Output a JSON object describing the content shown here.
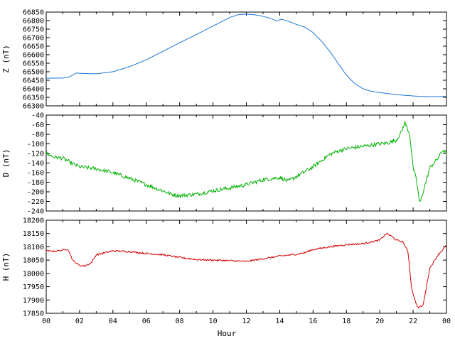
{
  "chart_data": [
    {
      "type": "line",
      "ylabel": "Z (nT)",
      "ylim": [
        66300,
        66850
      ],
      "yticks": [
        66300,
        66350,
        66400,
        66450,
        66500,
        66550,
        66600,
        66650,
        66700,
        66750,
        66800,
        66850
      ],
      "xlim": [
        0,
        24
      ],
      "color": "#1f77d4",
      "series": [
        {
          "x": [
            0,
            1.0,
            1.4,
            1.8,
            2.2,
            3.0,
            4.0,
            5.0,
            6.0,
            7.0,
            8.0,
            9.0,
            10.0,
            11.0,
            11.5,
            12.0,
            12.5,
            13.0,
            13.5,
            13.8,
            14.1,
            14.4,
            15.0,
            15.5,
            16.0,
            16.5,
            17.0,
            17.5,
            18.0,
            18.5,
            19.0,
            19.5,
            20.0,
            20.5,
            21.0,
            21.5,
            22.0,
            22.5,
            23.0,
            23.5,
            24.0
          ],
          "values": [
            66462,
            66463,
            66470,
            66492,
            66490,
            66488,
            66500,
            66530,
            66570,
            66620,
            66670,
            66718,
            66768,
            66818,
            66835,
            66838,
            66834,
            66825,
            66812,
            66797,
            66808,
            66800,
            66778,
            66762,
            66730,
            66680,
            66620,
            66550,
            66480,
            66430,
            66400,
            66385,
            66378,
            66372,
            66366,
            66362,
            66358,
            66355,
            66354,
            66354,
            66356
          ]
        }
      ]
    },
    {
      "type": "line",
      "ylabel": "D (nT)",
      "ylim": [
        -240,
        -40
      ],
      "yticks": [
        -240,
        -220,
        -200,
        -180,
        -160,
        -140,
        -120,
        -100,
        -80,
        -60,
        -40
      ],
      "xlim": [
        0,
        24
      ],
      "color": "#00b000",
      "series": [
        {
          "x": [
            0,
            0.5,
            1.0,
            1.5,
            2.0,
            3.0,
            4.0,
            5.0,
            6.0,
            7.0,
            7.5,
            8.0,
            9.0,
            10.0,
            11.0,
            12.0,
            13.0,
            14.0,
            14.5,
            15.0,
            16.0,
            17.0,
            17.5,
            18.0,
            19.0,
            20.0,
            20.5,
            21.0,
            21.3,
            21.5,
            21.8,
            22.0,
            22.2,
            22.4,
            22.6,
            23.0,
            23.5,
            23.8,
            24.0
          ],
          "values": [
            -120,
            -128,
            -130,
            -140,
            -148,
            -152,
            -160,
            -172,
            -185,
            -198,
            -205,
            -208,
            -205,
            -198,
            -192,
            -185,
            -175,
            -170,
            -178,
            -168,
            -148,
            -122,
            -115,
            -110,
            -105,
            -100,
            -98,
            -92,
            -75,
            -55,
            -80,
            -150,
            -175,
            -225,
            -200,
            -150,
            -130,
            -112,
            -120
          ]
        }
      ]
    },
    {
      "type": "line",
      "ylabel": "H (nT)",
      "ylim": [
        17850,
        18200
      ],
      "yticks": [
        17850,
        17900,
        17950,
        18000,
        18050,
        18100,
        18150,
        18200
      ],
      "xlim": [
        0,
        24
      ],
      "xlabel": "Hour",
      "xtick_labels": [
        "00",
        "02",
        "04",
        "06",
        "08",
        "10",
        "12",
        "14",
        "16",
        "18",
        "20",
        "22",
        "00"
      ],
      "color": "#d40000",
      "series": [
        {
          "x": [
            0,
            0.5,
            1.0,
            1.3,
            1.6,
            2.0,
            2.3,
            2.7,
            3.0,
            4.0,
            5.0,
            6.0,
            7.0,
            8.0,
            9.0,
            10.0,
            11.0,
            12.0,
            13.0,
            14.0,
            15.0,
            15.5,
            16.0,
            17.0,
            18.0,
            19.0,
            20.0,
            20.4,
            20.7,
            21.0,
            21.4,
            21.7,
            21.9,
            22.1,
            22.3,
            22.6,
            23.0,
            23.5,
            24.0
          ],
          "values": [
            18085,
            18083,
            18088,
            18092,
            18048,
            18030,
            18028,
            18040,
            18070,
            18085,
            18082,
            18075,
            18070,
            18060,
            18052,
            18050,
            18048,
            18045,
            18055,
            18065,
            18072,
            18078,
            18090,
            18100,
            18108,
            18112,
            18125,
            18150,
            18140,
            18125,
            18118,
            18080,
            17950,
            17900,
            17870,
            17880,
            18020,
            18070,
            18105
          ]
        }
      ]
    }
  ]
}
